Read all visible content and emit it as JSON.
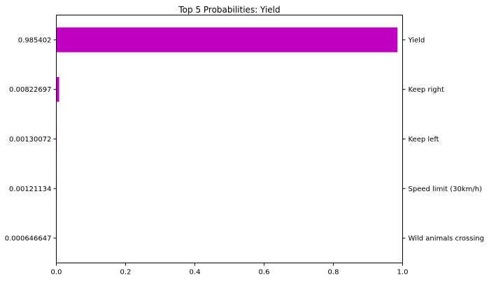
{
  "chart_data": {
    "type": "bar",
    "orientation": "horizontal",
    "title": "Top 5 Probabilities: Yield",
    "categories": [
      "Yield",
      "Keep right",
      "Keep left",
      "Speed limit (30km/h)",
      "Wild animals crossing"
    ],
    "values": [
      0.985402,
      0.00822697,
      0.00130072,
      0.00121134,
      0.000646647
    ],
    "value_labels": [
      "0.985402",
      "0.00822697",
      "0.00130072",
      "0.00121134",
      "0.000646647"
    ],
    "xlim": [
      0.0,
      1.0
    ],
    "xticks": [
      0.0,
      0.2,
      0.4,
      0.6,
      0.8,
      1.0
    ],
    "xtick_labels": [
      "0.0",
      "0.2",
      "0.4",
      "0.6",
      "0.8",
      "1.0"
    ],
    "xlabel": "",
    "ylabel": "",
    "grid": false,
    "legend": "none",
    "bar_color": "#bf00bf",
    "left_axis_labels": "value_labels",
    "right_axis_labels": "categories"
  }
}
